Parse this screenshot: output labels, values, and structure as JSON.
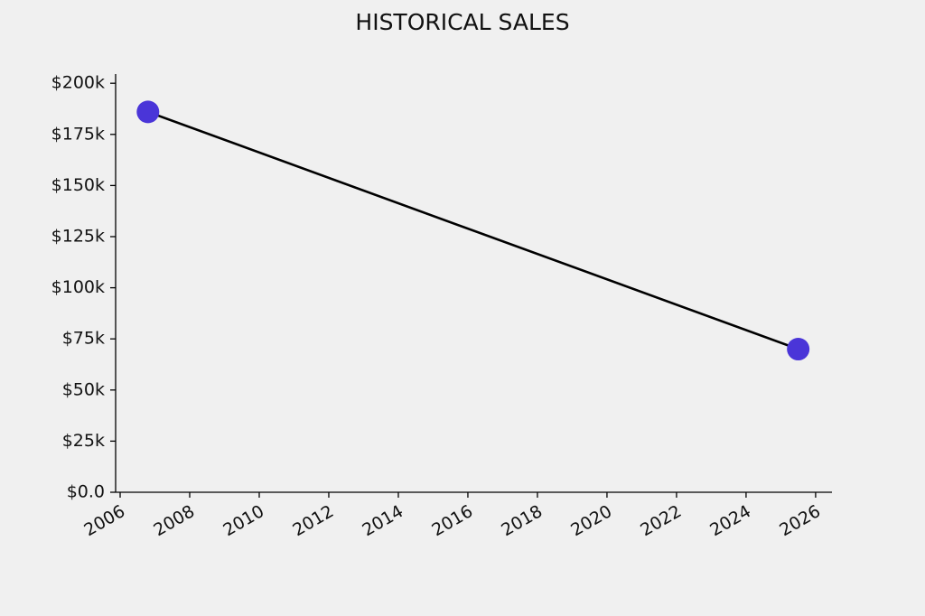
{
  "chart_data": {
    "type": "line",
    "title": "HISTORICAL SALES",
    "x": [
      2006.8,
      2025.5
    ],
    "values": [
      186000,
      70000
    ],
    "line_color": "#000000",
    "marker_color": "#4a35d8",
    "xlim": [
      2005.87,
      2026.47
    ],
    "xticks": [
      2006,
      2008,
      2010,
      2012,
      2014,
      2016,
      2018,
      2020,
      2022,
      2024,
      2026
    ],
    "ylim": [
      0,
      204500
    ],
    "yticks": [
      {
        "value": 0,
        "label": "$0.0"
      },
      {
        "value": 25000,
        "label": "$25k"
      },
      {
        "value": 50000,
        "label": "$50k"
      },
      {
        "value": 75000,
        "label": "$75k"
      },
      {
        "value": 100000,
        "label": "$100k"
      },
      {
        "value": 125000,
        "label": "$125k"
      },
      {
        "value": 150000,
        "label": "$150k"
      },
      {
        "value": 175000,
        "label": "$175k"
      },
      {
        "value": 200000,
        "label": "$200k"
      }
    ],
    "grid": false
  }
}
